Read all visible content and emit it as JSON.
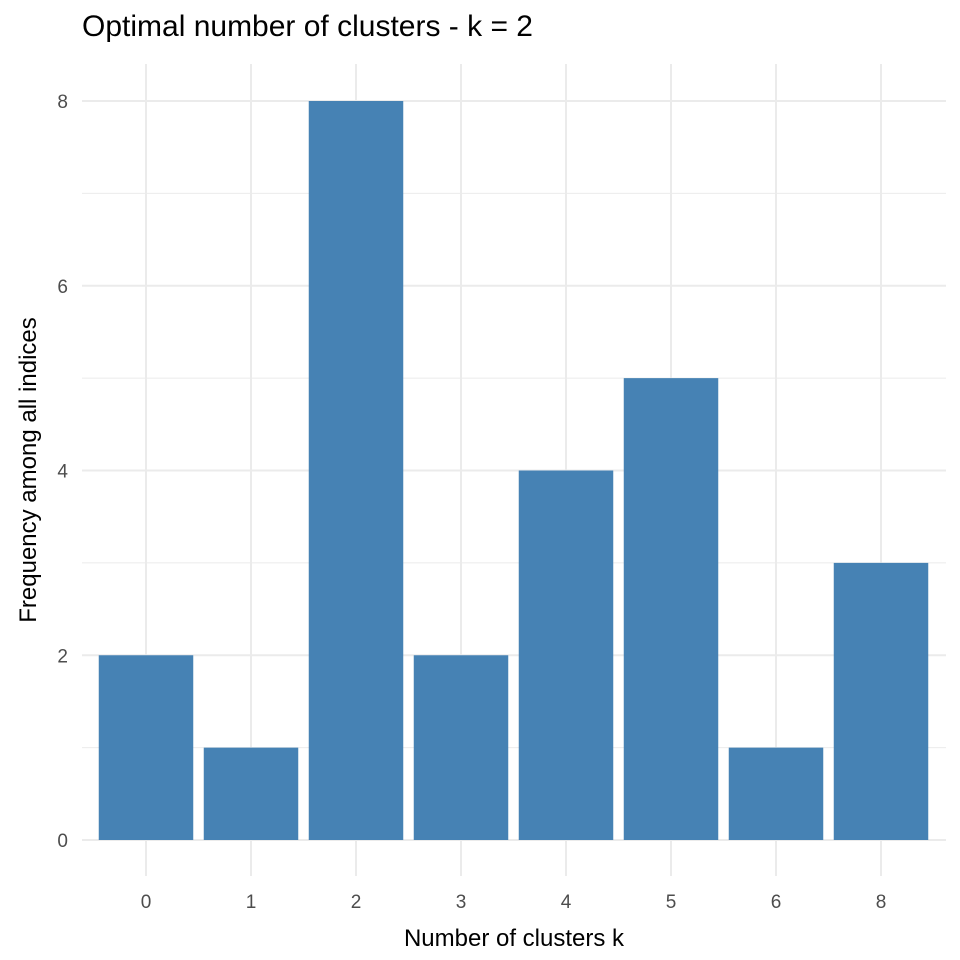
{
  "chart_data": {
    "type": "bar",
    "title": "Optimal number of clusters - k = 2",
    "xlabel": "Number of clusters k",
    "ylabel": "Frequency among all indices",
    "categories": [
      "0",
      "1",
      "2",
      "3",
      "4",
      "5",
      "6",
      "8"
    ],
    "values": [
      2,
      1,
      8,
      2,
      4,
      5,
      1,
      3
    ],
    "ylim": [
      0,
      8
    ],
    "yticks": [
      0,
      2,
      4,
      6,
      8
    ],
    "grid": true,
    "legend": "none",
    "bar_color": "#4682B4",
    "grid_color": "#ebebeb"
  }
}
